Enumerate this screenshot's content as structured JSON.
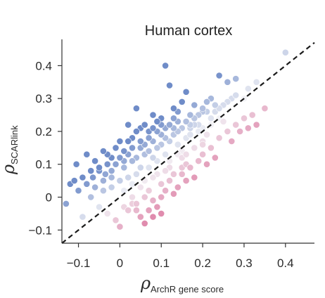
{
  "chart_data": {
    "type": "scatter",
    "title": "Human cortex",
    "xlabel": {
      "symbol": "ρ",
      "subscript": "ArchR gene score"
    },
    "ylabel": {
      "symbol": "ρ",
      "subscript": "SCARlink"
    },
    "xlim": [
      -0.14,
      0.47
    ],
    "ylim": [
      -0.14,
      0.48
    ],
    "xticks": [
      -0.1,
      0,
      0.1,
      0.2,
      0.3,
      0.4
    ],
    "yticks": [
      -0.1,
      0,
      0.1,
      0.2,
      0.3,
      0.4
    ],
    "xtick_labels": [
      "−0.1",
      "0",
      "0.1",
      "0.2",
      "0.3",
      "0.4"
    ],
    "ytick_labels": [
      "−0.1",
      "0",
      "0.1",
      "0.2",
      "0.3",
      "0.4"
    ],
    "grid": false,
    "reference_line": "y = x (dashed)",
    "color_encoding": {
      "above": "#6f8cc8",
      "mid": "#f2f2f6",
      "below": "#e08cae"
    },
    "points": [
      [
        -0.13,
        -0.02
      ],
      [
        -0.12,
        0.04
      ],
      [
        -0.11,
        0.05
      ],
      [
        -0.105,
        0.1
      ],
      [
        -0.09,
        0.06
      ],
      [
        -0.08,
        0.13
      ],
      [
        -0.07,
        0.08
      ],
      [
        -0.065,
        0.06
      ],
      [
        -0.06,
        0.11
      ],
      [
        -0.05,
        0.08
      ],
      [
        -0.04,
        0.14
      ],
      [
        -0.035,
        0.07
      ],
      [
        -0.03,
        0.1
      ],
      [
        -0.02,
        0.12
      ],
      [
        -0.01,
        0.15
      ],
      [
        0.0,
        0.12
      ],
      [
        0.01,
        0.14
      ],
      [
        0.02,
        0.17
      ],
      [
        0.03,
        0.18
      ],
      [
        0.04,
        0.27
      ],
      [
        0.05,
        0.21
      ],
      [
        0.06,
        0.16
      ],
      [
        0.07,
        0.2
      ],
      [
        0.08,
        0.25
      ],
      [
        0.09,
        0.23
      ],
      [
        0.1,
        0.24
      ],
      [
        0.11,
        0.4
      ],
      [
        0.12,
        0.22
      ],
      [
        0.13,
        0.27
      ],
      [
        0.15,
        0.29
      ],
      [
        0.16,
        0.32
      ],
      [
        0.17,
        0.25
      ],
      [
        0.18,
        0.22
      ],
      [
        0.2,
        0.26
      ],
      [
        0.22,
        0.3
      ],
      [
        0.24,
        0.37
      ],
      [
        0.26,
        0.35
      ],
      [
        0.28,
        0.36
      ],
      [
        0.3,
        0.3
      ],
      [
        0.12,
        0.34
      ],
      [
        0.14,
        0.23
      ],
      [
        0.16,
        0.18
      ],
      [
        0.06,
        0.13
      ],
      [
        0.01,
        0.09
      ],
      [
        -0.02,
        0.06
      ],
      [
        0.03,
        0.11
      ],
      [
        0.05,
        0.09
      ],
      [
        0.08,
        0.12
      ],
      [
        0.1,
        0.16
      ],
      [
        0.13,
        0.19
      ],
      [
        0.18,
        0.28
      ],
      [
        0.21,
        0.29
      ],
      [
        -0.06,
        0.03
      ],
      [
        -0.04,
        0.02
      ],
      [
        -0.02,
        0.03
      ],
      [
        0.0,
        0.05
      ],
      [
        0.02,
        0.06
      ],
      [
        0.04,
        0.07
      ],
      [
        0.07,
        0.09
      ],
      [
        0.09,
        0.11
      ],
      [
        0.11,
        0.13
      ],
      [
        0.14,
        0.16
      ],
      [
        0.17,
        0.19
      ],
      [
        0.19,
        0.22
      ],
      [
        0.23,
        0.26
      ],
      [
        0.25,
        0.28
      ],
      [
        0.27,
        0.3
      ],
      [
        0.31,
        0.33
      ],
      [
        0.33,
        0.35
      ],
      [
        0.4,
        0.44
      ],
      [
        -0.09,
        -0.06
      ],
      [
        -0.05,
        -0.03
      ],
      [
        -0.03,
        -0.05
      ],
      [
        -0.01,
        -0.07
      ],
      [
        0.0,
        -0.09
      ],
      [
        0.02,
        -0.04
      ],
      [
        0.04,
        -0.02
      ],
      [
        0.05,
        -0.06
      ],
      [
        0.07,
        -0.04
      ],
      [
        0.08,
        -0.01
      ],
      [
        0.09,
        -0.03
      ],
      [
        0.1,
        0.0
      ],
      [
        0.11,
        0.02
      ],
      [
        0.12,
        0.05
      ],
      [
        0.13,
        0.01
      ],
      [
        0.15,
        0.07
      ],
      [
        0.17,
        0.09
      ],
      [
        0.19,
        0.11
      ],
      [
        0.2,
        0.13
      ],
      [
        0.22,
        0.15
      ],
      [
        0.24,
        0.18
      ],
      [
        0.26,
        0.2
      ],
      [
        0.28,
        0.22
      ],
      [
        0.3,
        0.24
      ],
      [
        0.32,
        0.25
      ],
      [
        0.33,
        0.22
      ],
      [
        0.35,
        0.27
      ],
      [
        0.06,
        -0.08
      ],
      [
        0.08,
        -0.06
      ],
      [
        0.1,
        -0.05
      ],
      [
        0.03,
        -0.02
      ],
      [
        0.14,
        0.03
      ],
      [
        0.16,
        0.05
      ],
      [
        0.18,
        0.06
      ],
      [
        0.21,
        0.1
      ],
      [
        0.23,
        0.12
      ],
      [
        0.27,
        0.17
      ],
      [
        0.29,
        0.2
      ],
      [
        0.31,
        0.21
      ],
      [
        -0.1,
        0.02
      ],
      [
        -0.08,
        0.04
      ],
      [
        -0.07,
        0.0
      ],
      [
        -0.04,
        0.05
      ],
      [
        0.01,
        0.02
      ],
      [
        0.03,
        0.04
      ],
      [
        0.06,
        0.05
      ],
      [
        0.09,
        0.07
      ],
      [
        0.12,
        0.09
      ],
      [
        0.15,
        0.12
      ],
      [
        0.2,
        0.17
      ],
      [
        0.25,
        0.23
      ],
      [
        0.02,
        0.22
      ],
      [
        0.04,
        0.2
      ],
      [
        0.07,
        0.18
      ],
      [
        0.09,
        0.2
      ],
      [
        0.11,
        0.21
      ],
      [
        0.13,
        0.24
      ],
      [
        0.14,
        0.26
      ],
      [
        0.16,
        0.23
      ],
      [
        0.19,
        0.25
      ],
      [
        0.2,
        0.27
      ],
      [
        0.22,
        0.24
      ],
      [
        0.24,
        0.27
      ],
      [
        0.26,
        0.29
      ],
      [
        -0.03,
        0.13
      ],
      [
        0.0,
        0.17
      ],
      [
        0.05,
        0.15
      ],
      [
        0.08,
        0.17
      ],
      [
        0.1,
        0.19
      ],
      [
        0.12,
        0.17
      ],
      [
        0.15,
        0.21
      ],
      [
        0.17,
        0.22
      ],
      [
        0.06,
        0.22
      ],
      [
        0.08,
        0.21
      ],
      [
        0.1,
        0.22
      ],
      [
        0.02,
        0.13
      ],
      [
        -0.01,
        0.1
      ],
      [
        0.04,
        0.12
      ],
      [
        0.07,
        0.14
      ],
      [
        0.11,
        0.18
      ],
      [
        0.13,
        0.21
      ],
      [
        0.18,
        0.24
      ],
      [
        0.21,
        0.26
      ],
      [
        0.23,
        0.28
      ],
      [
        0.28,
        0.31
      ],
      [
        -0.05,
        0.09
      ],
      [
        -0.02,
        0.08
      ],
      [
        0.01,
        0.11
      ],
      [
        0.03,
        0.15
      ],
      [
        0.05,
        0.17
      ],
      [
        0.09,
        0.15
      ],
      [
        0.14,
        0.2
      ],
      [
        0.17,
        0.21
      ],
      [
        0.19,
        0.2
      ],
      [
        0.2,
        0.21
      ],
      [
        0.22,
        0.22
      ],
      [
        0.24,
        0.24
      ],
      [
        0.15,
        0.14
      ],
      [
        0.16,
        0.13
      ],
      [
        0.18,
        0.15
      ],
      [
        0.2,
        0.16
      ],
      [
        0.21,
        0.19
      ],
      [
        0.12,
        0.11
      ],
      [
        0.14,
        0.13
      ],
      [
        0.05,
        0.03
      ],
      [
        0.07,
        0.02
      ],
      [
        0.08,
        0.06
      ],
      [
        0.1,
        0.04
      ],
      [
        0.11,
        0.08
      ],
      [
        0.13,
        0.07
      ],
      [
        0.15,
        0.09
      ],
      [
        0.16,
        0.1
      ],
      [
        0.03,
        0.0
      ],
      [
        0.04,
        -0.04
      ],
      [
        0.06,
        0.0
      ],
      [
        0.01,
        -0.03
      ]
    ]
  }
}
